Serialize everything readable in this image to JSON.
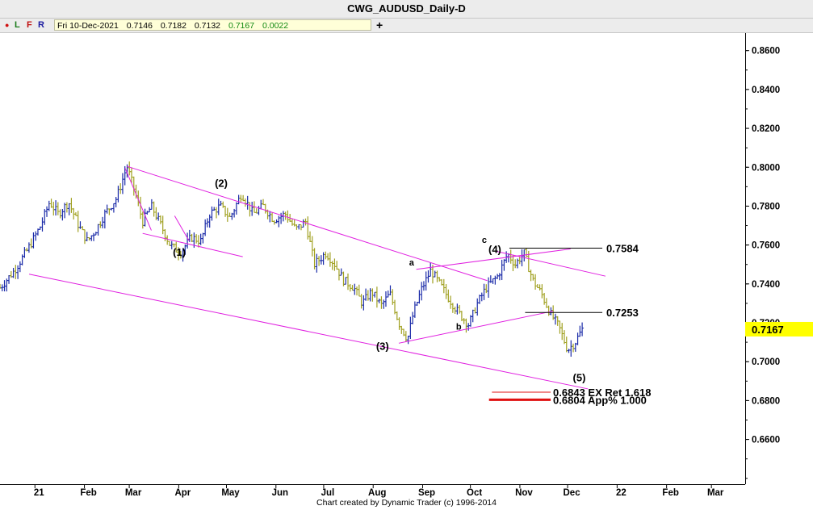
{
  "title": "CWG_AUDUSD_Daily-D",
  "toolbar": {
    "dot": "●",
    "l": "L",
    "f": "F",
    "r": "R",
    "date": "Fri 10-Dec-2021",
    "open": "0.7146",
    "high": "0.7182",
    "low": "0.7132",
    "close": "0.7167",
    "change": "0.0022",
    "add": "+"
  },
  "footer": "Chart created by Dynamic Trader  (c) 1996-2014",
  "chart_data": {
    "type": "bar",
    "symbol": "CWG_AUDUSD_Daily-D",
    "xlabel": "",
    "ylabel": "",
    "ylim": [
      0.637,
      0.869
    ],
    "xlim": [
      2020.94,
      2022.22
    ],
    "y_ticks": [
      "0.8600",
      "0.8400",
      "0.8200",
      "0.8000",
      "0.7800",
      "0.7600",
      "0.7400",
      "0.7200",
      "0.7000",
      "0.6800",
      "0.6600"
    ],
    "x_ticks": [
      {
        "label": "21",
        "x": 2021.0
      },
      {
        "label": "Feb",
        "x": 2021.085
      },
      {
        "label": "Mar",
        "x": 2021.162
      },
      {
        "label": "Apr",
        "x": 2021.247
      },
      {
        "label": "May",
        "x": 2021.329
      },
      {
        "label": "Jun",
        "x": 2021.414
      },
      {
        "label": "Jul",
        "x": 2021.496
      },
      {
        "label": "Aug",
        "x": 2021.581
      },
      {
        "label": "Sep",
        "x": 2021.666
      },
      {
        "label": "Oct",
        "x": 2021.748
      },
      {
        "label": "Nov",
        "x": 2021.833
      },
      {
        "label": "Dec",
        "x": 2021.915
      },
      {
        "label": "22",
        "x": 2022.0
      },
      {
        "label": "Feb",
        "x": 2022.085
      },
      {
        "label": "Mar",
        "x": 2022.162
      }
    ],
    "last_price": "0.7167",
    "price_path": [
      [
        2020.94,
        0.738
      ],
      [
        2020.965,
        0.747
      ],
      [
        2020.99,
        0.759
      ],
      [
        2021.01,
        0.77
      ],
      [
        2021.025,
        0.782
      ],
      [
        2021.04,
        0.776
      ],
      [
        2021.058,
        0.782
      ],
      [
        2021.075,
        0.77
      ],
      [
        2021.09,
        0.762
      ],
      [
        2021.105,
        0.768
      ],
      [
        2021.12,
        0.776
      ],
      [
        2021.14,
        0.784
      ],
      [
        2021.158,
        0.8005
      ],
      [
        2021.172,
        0.787
      ],
      [
        2021.185,
        0.772
      ],
      [
        2021.2,
        0.78
      ],
      [
        2021.215,
        0.771
      ],
      [
        2021.232,
        0.76
      ],
      [
        2021.25,
        0.756
      ],
      [
        2021.268,
        0.764
      ],
      [
        2021.285,
        0.762
      ],
      [
        2021.3,
        0.776
      ],
      [
        2021.318,
        0.78
      ],
      [
        2021.335,
        0.774
      ],
      [
        2021.355,
        0.7865
      ],
      [
        2021.375,
        0.776
      ],
      [
        2021.392,
        0.78
      ],
      [
        2021.41,
        0.773
      ],
      [
        2021.43,
        0.776
      ],
      [
        2021.448,
        0.768
      ],
      [
        2021.465,
        0.772
      ],
      [
        2021.48,
        0.75
      ],
      [
        2021.5,
        0.756
      ],
      [
        2021.515,
        0.75
      ],
      [
        2021.53,
        0.742
      ],
      [
        2021.548,
        0.738
      ],
      [
        2021.562,
        0.73
      ],
      [
        2021.578,
        0.736
      ],
      [
        2021.595,
        0.729
      ],
      [
        2021.61,
        0.735
      ],
      [
        2021.625,
        0.72
      ],
      [
        2021.64,
        0.7115
      ],
      [
        2021.65,
        0.725
      ],
      [
        2021.665,
        0.738
      ],
      [
        2021.68,
        0.747
      ],
      [
        2021.695,
        0.74
      ],
      [
        2021.712,
        0.732
      ],
      [
        2021.728,
        0.725
      ],
      [
        2021.745,
        0.719
      ],
      [
        2021.76,
        0.73
      ],
      [
        2021.775,
        0.738
      ],
      [
        2021.795,
        0.744
      ],
      [
        2021.812,
        0.7555
      ],
      [
        2021.825,
        0.75
      ],
      [
        2021.84,
        0.756
      ],
      [
        2021.855,
        0.742
      ],
      [
        2021.87,
        0.735
      ],
      [
        2021.885,
        0.725
      ],
      [
        2021.9,
        0.718
      ],
      [
        2021.915,
        0.706
      ],
      [
        2021.928,
        0.71
      ],
      [
        2021.94,
        0.7167
      ]
    ],
    "lines": [
      {
        "type": "channel",
        "color": "#e020e0",
        "points": [
          [
            2021.158,
            0.8005
          ],
          [
            2021.777,
            0.7417
          ]
        ]
      },
      {
        "type": "channel",
        "color": "#e020e0",
        "points": [
          [
            2020.99,
            0.745
          ],
          [
            2021.95,
            0.686
          ]
        ]
      },
      {
        "type": "channel",
        "color": "#e020e0",
        "points": [
          [
            2021.792,
            0.7568
          ],
          [
            2021.98,
            0.744
          ]
        ]
      },
      {
        "type": "wedge",
        "color": "#e020e0",
        "points": [
          [
            2021.185,
            0.766
          ],
          [
            2021.357,
            0.754
          ]
        ]
      },
      {
        "type": "wedge",
        "color": "#e020e0",
        "points": [
          [
            2021.155,
            0.7995
          ],
          [
            2021.2,
            0.7675
          ]
        ]
      },
      {
        "type": "wedge",
        "color": "#e020e0",
        "points": [
          [
            2021.24,
            0.775
          ],
          [
            2021.265,
            0.762
          ]
        ]
      },
      {
        "type": "wedge",
        "color": "#e020e0",
        "points": [
          [
            2021.625,
            0.7095
          ],
          [
            2021.89,
            0.726
          ]
        ]
      },
      {
        "type": "wedge",
        "color": "#e020e0",
        "points": [
          [
            2021.655,
            0.7475
          ],
          [
            2021.92,
            0.758
          ]
        ]
      }
    ],
    "levels": [
      {
        "value": 0.7584,
        "label": "0.7584",
        "color": "#000000",
        "x_start": 2021.815,
        "x_end": 2022.08
      },
      {
        "value": 0.7253,
        "label": "0.7253",
        "color": "#000000",
        "x_start": 2021.842,
        "x_end": 2022.08
      },
      {
        "value": 0.6843,
        "label": "0.6843 EX Ret 1.618",
        "color": "#e01010",
        "x_start": 2021.785,
        "x_end": 2022.08
      },
      {
        "value": 0.6804,
        "label": "0.6804 App% 1.000",
        "color": "#e01010",
        "x_start": 2021.78,
        "x_end": 2022.08
      }
    ],
    "wave_labels": [
      {
        "text": "(1)",
        "x": 2021.248,
        "y": 0.7545
      },
      {
        "text": "(2)",
        "x": 2021.32,
        "y": 0.79
      },
      {
        "text": "(3)",
        "x": 2021.597,
        "y": 0.706
      },
      {
        "text": "(4)",
        "x": 2021.79,
        "y": 0.756
      },
      {
        "text": "(5)",
        "x": 2021.935,
        "y": 0.69
      },
      {
        "text": "a",
        "x": 2021.647,
        "y": 0.7495
      },
      {
        "text": "b",
        "x": 2021.728,
        "y": 0.7165
      },
      {
        "text": "c",
        "x": 2021.772,
        "y": 0.761
      }
    ]
  }
}
